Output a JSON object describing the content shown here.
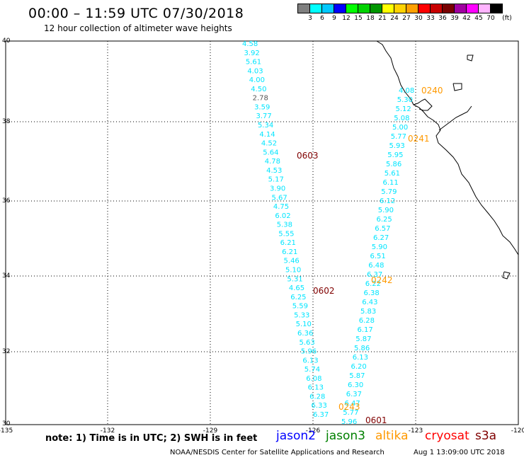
{
  "header": {
    "title": "00:00 – 11:59 UTC 07/30/2018",
    "subtitle": "12 hour collection of altimeter wave heights"
  },
  "color_scale": {
    "labels": [
      "3",
      "6",
      "9",
      "12",
      "15",
      "18",
      "21",
      "24",
      "27",
      "30",
      "33",
      "36",
      "39",
      "42",
      "45",
      "70",
      "(ft)"
    ],
    "colors": [
      "#7f7f7f",
      "#00ffff",
      "#00c8ff",
      "#0000ff",
      "#00ff00",
      "#00d200",
      "#009600",
      "#ffff00",
      "#ffd200",
      "#ffa000",
      "#ff0000",
      "#c80000",
      "#780000",
      "#a000a0",
      "#ff00ff",
      "#ffb4ff",
      "#000000"
    ]
  },
  "axes": {
    "lon_labels": [
      "-135",
      "-132",
      "-129",
      "-126",
      "-123",
      "-120"
    ],
    "lat_labels": [
      "40",
      "38",
      "36",
      "34",
      "32",
      "30"
    ]
  },
  "tracks": {
    "west": {
      "color": "#00e5ff",
      "labels": [
        "4.58",
        "3.92",
        "5.61",
        "4.03",
        "4.00",
        "4.50",
        "2.78",
        "3.59",
        "3.77",
        "5.34",
        "4.14",
        "4.52",
        "5.64",
        "4.78",
        "4.53",
        "5.17",
        "3.90",
        "5.67",
        "4.75",
        "6.02",
        "5.38",
        "5.55",
        "6.21",
        "6.21",
        "5.46",
        "5.10",
        "5.31",
        "4.65",
        "6.25",
        "5.59",
        "5.33",
        "5.10",
        "6.36",
        "5.63",
        "5.96",
        "6.13",
        "5.74",
        "6.08",
        "6.13",
        "6.28",
        "6.33",
        "6.37"
      ]
    },
    "east": {
      "color": "#00e5ff",
      "labels": [
        "4.08",
        "5.30",
        "5.12",
        "5.08",
        "5.00",
        "5.77",
        "5.93",
        "5.95",
        "5.86",
        "5.61",
        "6.11",
        "5.79",
        "6.12",
        "5.90",
        "6.25",
        "6.57",
        "6.27",
        "5.90",
        "6.51",
        "6.48",
        "6.37",
        "6.22",
        "6.38",
        "6.43",
        "5.83",
        "6.28",
        "6.17",
        "5.87",
        "5.86",
        "6.13",
        "6.20",
        "5.87",
        "6.30",
        "6.37",
        "6.47",
        "5.77",
        "5.96"
      ]
    }
  },
  "time_labels": [
    {
      "text": "0240",
      "color": "#ff9900"
    },
    {
      "text": "0241",
      "color": "#ff9900"
    },
    {
      "text": "0242",
      "color": "#ff9900"
    },
    {
      "text": "0243",
      "color": "#ff9900"
    },
    {
      "text": "0603",
      "color": "#800000"
    },
    {
      "text": "0602",
      "color": "#800000"
    },
    {
      "text": "0601",
      "color": "#800000"
    }
  ],
  "footer": {
    "note": "note: 1) Time is in UTC; 2) SWH is in feet",
    "credit": "NOAA/NESDIS Center for Satellite Applications and Research",
    "generated": "Aug  1 13:09:00 UTC 2018"
  },
  "legend": [
    {
      "text": "jason2",
      "color": "#0000ff"
    },
    {
      "text": "jason3",
      "color": "#008000"
    },
    {
      "text": "altika",
      "color": "#ff9900"
    },
    {
      "text": "cryosat",
      "color": "#ff0000"
    },
    {
      "text": "s3a",
      "color": "#800000"
    }
  ]
}
